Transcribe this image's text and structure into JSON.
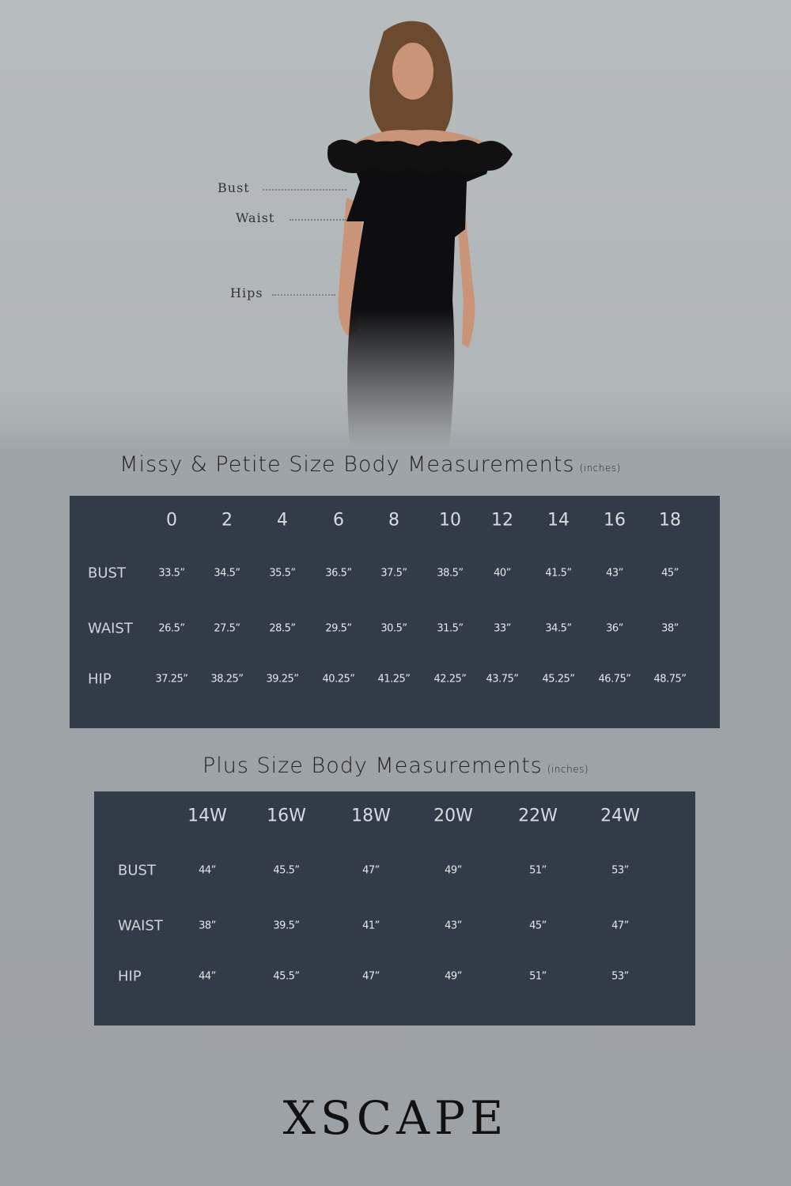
{
  "figure": {
    "labels": {
      "bust": "Bust",
      "waist": "Waist",
      "hips": "Hips"
    }
  },
  "missy": {
    "title": "Missy & Petite Size Body Measurements",
    "unit": "(inches)",
    "sizes": [
      "0",
      "2",
      "4",
      "6",
      "8",
      "10",
      "12",
      "14",
      "16",
      "18"
    ],
    "rows": [
      {
        "label": "BUST",
        "values": [
          "33.5”",
          "34.5”",
          "35.5”",
          "36.5”",
          "37.5”",
          "38.5”",
          "40”",
          "41.5”",
          "43”",
          "45”"
        ]
      },
      {
        "label": "WAIST",
        "values": [
          "26.5”",
          "27.5”",
          "28.5”",
          "29.5”",
          "30.5”",
          "31.5”",
          "33”",
          "34.5”",
          "36”",
          "38”"
        ]
      },
      {
        "label": "HIP",
        "values": [
          "37.25”",
          "38.25”",
          "39.25”",
          "40.25”",
          "41.25”",
          "42.25”",
          "43.75”",
          "45.25”",
          "46.75”",
          "48.75”"
        ]
      }
    ]
  },
  "plus": {
    "title": "Plus Size Body Measurements",
    "unit": "(inches)",
    "sizes": [
      "14W",
      "16W",
      "18W",
      "20W",
      "22W",
      "24W"
    ],
    "rows": [
      {
        "label": "BUST",
        "values": [
          "44”",
          "45.5”",
          "47”",
          "49”",
          "51”",
          "53”"
        ]
      },
      {
        "label": "WAIST",
        "values": [
          "38”",
          "39.5”",
          "41”",
          "43”",
          "45”",
          "47”"
        ]
      },
      {
        "label": "HIP",
        "values": [
          "44”",
          "45.5”",
          "47”",
          "49”",
          "51”",
          "53”"
        ]
      }
    ]
  },
  "brand": {
    "logo": "XSCAPE"
  },
  "colors": {
    "table_bg": "#323c48",
    "page_bg": "#a3a8ac"
  }
}
